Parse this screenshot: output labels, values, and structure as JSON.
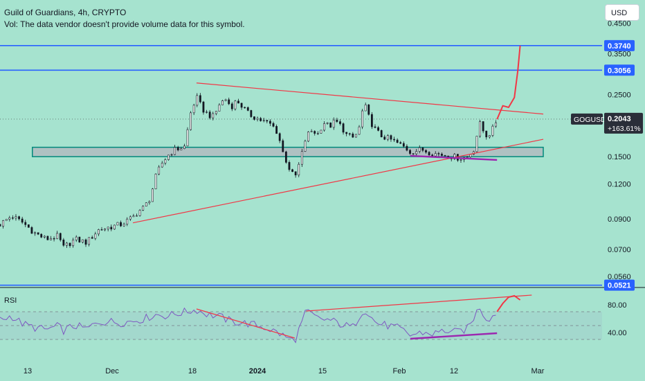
{
  "header": {
    "title": "Guild of Guardians, 4h, CRYPTO",
    "volume_note": "Vol: The data vendor doesn't provide volume data for this symbol."
  },
  "currency_button": "USD",
  "colors": {
    "background": "#a6e3cf",
    "candle": "#131722",
    "hline": "#2962ff",
    "trendline": "#f23645",
    "rsi_line": "#7e57c2",
    "divergence": "#9c27b0",
    "zone_fill": "#b2b5be",
    "zone_border": "#00897b",
    "projection": "#f23645"
  },
  "chart_data": [
    {
      "type": "candlestick",
      "title": "Guild of Guardians, 4h, CRYPTO",
      "symbol": "GOGUSD",
      "last_price": "0.2043",
      "change_percent": "+163.61%",
      "y_scale": "log",
      "ylim": [
        0.052,
        0.52
      ],
      "y_ticks": [
        "0.4500",
        "0.3500",
        "0.2500",
        "0.1500",
        "0.1200",
        "0.0900",
        "0.0700",
        "0.0560"
      ],
      "x_ticks": [
        "13",
        "Dec",
        "18",
        "2024",
        "15",
        "Feb",
        "12",
        "Mar"
      ],
      "horizontal_levels": [
        "0.3740",
        "0.3056",
        "0.0521"
      ],
      "support_zone": [
        0.15,
        0.162
      ],
      "price_path": [
        {
          "t": -8,
          "p": 0.086
        },
        {
          "t": -6,
          "p": 0.092
        },
        {
          "t": -4,
          "p": 0.087
        },
        {
          "t": -2,
          "p": 0.08
        },
        {
          "t": 0,
          "p": 0.076
        },
        {
          "t": 2,
          "p": 0.078
        },
        {
          "t": 3,
          "p": 0.071
        },
        {
          "t": 5,
          "p": 0.076
        },
        {
          "t": 7,
          "p": 0.074
        },
        {
          "t": 9,
          "p": 0.082
        },
        {
          "t": 11,
          "p": 0.084
        },
        {
          "t": 13,
          "p": 0.086
        },
        {
          "t": 15,
          "p": 0.091
        },
        {
          "t": 16,
          "p": 0.096
        },
        {
          "t": 17,
          "p": 0.099
        },
        {
          "t": 18,
          "p": 0.107
        },
        {
          "t": 19,
          "p": 0.128
        },
        {
          "t": 20,
          "p": 0.142
        },
        {
          "t": 21,
          "p": 0.151
        },
        {
          "t": 22,
          "p": 0.158
        },
        {
          "t": 24,
          "p": 0.163
        },
        {
          "t": 25,
          "p": 0.215
        },
        {
          "t": 26,
          "p": 0.245
        },
        {
          "t": 27,
          "p": 0.222
        },
        {
          "t": 28,
          "p": 0.212
        },
        {
          "t": 29,
          "p": 0.208
        },
        {
          "t": 30,
          "p": 0.232
        },
        {
          "t": 31,
          "p": 0.241
        },
        {
          "t": 32,
          "p": 0.226
        },
        {
          "t": 33,
          "p": 0.238
        },
        {
          "t": 35,
          "p": 0.213
        },
        {
          "t": 37,
          "p": 0.203
        },
        {
          "t": 39,
          "p": 0.195
        },
        {
          "t": 40,
          "p": 0.183
        },
        {
          "t": 41,
          "p": 0.154
        },
        {
          "t": 42,
          "p": 0.137
        },
        {
          "t": 43,
          "p": 0.125
        },
        {
          "t": 44,
          "p": 0.146
        },
        {
          "t": 45,
          "p": 0.178
        },
        {
          "t": 46,
          "p": 0.186
        },
        {
          "t": 47,
          "p": 0.181
        },
        {
          "t": 48,
          "p": 0.199
        },
        {
          "t": 49,
          "p": 0.192
        },
        {
          "t": 50,
          "p": 0.201
        },
        {
          "t": 51,
          "p": 0.193
        },
        {
          "t": 52,
          "p": 0.179
        },
        {
          "t": 53,
          "p": 0.175
        },
        {
          "t": 54,
          "p": 0.183
        },
        {
          "t": 55,
          "p": 0.232
        },
        {
          "t": 56,
          "p": 0.202
        },
        {
          "t": 57,
          "p": 0.186
        },
        {
          "t": 58,
          "p": 0.178
        },
        {
          "t": 60,
          "p": 0.171
        },
        {
          "t": 62,
          "p": 0.162
        },
        {
          "t": 63,
          "p": 0.156
        },
        {
          "t": 65,
          "p": 0.159
        },
        {
          "t": 67,
          "p": 0.154
        },
        {
          "t": 69,
          "p": 0.152
        },
        {
          "t": 71,
          "p": 0.149
        },
        {
          "t": 72,
          "p": 0.148
        },
        {
          "t": 73,
          "p": 0.15
        },
        {
          "t": 74,
          "p": 0.16
        },
        {
          "t": 75,
          "p": 0.197
        },
        {
          "t": 76,
          "p": 0.178
        },
        {
          "t": 77,
          "p": 0.183
        },
        {
          "t": 78,
          "p": 0.204
        }
      ],
      "trendlines": [
        {
          "name": "upper-resistance",
          "from": [
            26,
            0.275
          ],
          "to": [
            86,
            0.213
          ]
        },
        {
          "name": "lower-support",
          "from": [
            15,
            0.087
          ],
          "to": [
            86,
            0.173
          ]
        },
        {
          "name": "price-divergence",
          "from": [
            63,
            0.151
          ],
          "to": [
            78,
            0.146
          ]
        }
      ],
      "projection": [
        {
          "t": 78,
          "p": 0.204
        },
        {
          "t": 79,
          "p": 0.228
        },
        {
          "t": 80,
          "p": 0.225
        },
        {
          "t": 81,
          "p": 0.244
        },
        {
          "t": 81.6,
          "p": 0.305
        },
        {
          "t": 82,
          "p": 0.374
        }
      ]
    },
    {
      "type": "line",
      "title": "RSI",
      "ylim": [
        0,
        100
      ],
      "y_ticks": [
        "80.00",
        "40.00"
      ],
      "bands": [
        70,
        50,
        30
      ],
      "rsi_path": [
        {
          "t": -8,
          "p": 58
        },
        {
          "t": -6,
          "p": 64
        },
        {
          "t": -4,
          "p": 52
        },
        {
          "t": -2,
          "p": 47
        },
        {
          "t": 0,
          "p": 44
        },
        {
          "t": 2,
          "p": 49
        },
        {
          "t": 3,
          "p": 43
        },
        {
          "t": 5,
          "p": 50
        },
        {
          "t": 7,
          "p": 45
        },
        {
          "t": 9,
          "p": 55
        },
        {
          "t": 11,
          "p": 56
        },
        {
          "t": 13,
          "p": 54
        },
        {
          "t": 15,
          "p": 57
        },
        {
          "t": 17,
          "p": 60
        },
        {
          "t": 19,
          "p": 66
        },
        {
          "t": 21,
          "p": 64
        },
        {
          "t": 23,
          "p": 68
        },
        {
          "t": 26,
          "p": 73
        },
        {
          "t": 28,
          "p": 66
        },
        {
          "t": 30,
          "p": 63
        },
        {
          "t": 32,
          "p": 56
        },
        {
          "t": 34,
          "p": 54
        },
        {
          "t": 36,
          "p": 51
        },
        {
          "t": 38,
          "p": 47
        },
        {
          "t": 40,
          "p": 40
        },
        {
          "t": 42,
          "p": 31
        },
        {
          "t": 43,
          "p": 28
        },
        {
          "t": 44,
          "p": 50
        },
        {
          "t": 45,
          "p": 71
        },
        {
          "t": 47,
          "p": 60
        },
        {
          "t": 49,
          "p": 58
        },
        {
          "t": 51,
          "p": 52
        },
        {
          "t": 53,
          "p": 47
        },
        {
          "t": 55,
          "p": 75
        },
        {
          "t": 57,
          "p": 54
        },
        {
          "t": 59,
          "p": 50
        },
        {
          "t": 61,
          "p": 46
        },
        {
          "t": 63,
          "p": 36
        },
        {
          "t": 65,
          "p": 40
        },
        {
          "t": 67,
          "p": 38
        },
        {
          "t": 69,
          "p": 43
        },
        {
          "t": 71,
          "p": 40
        },
        {
          "t": 73,
          "p": 46
        },
        {
          "t": 75,
          "p": 78
        },
        {
          "t": 76,
          "p": 60
        },
        {
          "t": 77,
          "p": 62
        },
        {
          "t": 78,
          "p": 70
        }
      ],
      "rsi_projection": [
        {
          "t": 78,
          "p": 70
        },
        {
          "t": 79,
          "p": 82
        },
        {
          "t": 80,
          "p": 91
        },
        {
          "t": 81,
          "p": 93
        },
        {
          "t": 82,
          "p": 87
        }
      ],
      "trendlines": [
        {
          "name": "rsi-falling",
          "from": [
            26,
            74
          ],
          "to": [
            43,
            32
          ]
        },
        {
          "name": "rsi-rising",
          "from": [
            45,
            71
          ],
          "to": [
            84,
            94
          ]
        },
        {
          "name": "rsi-divergence",
          "from": [
            63,
            31
          ],
          "to": [
            78,
            39
          ]
        }
      ]
    }
  ]
}
